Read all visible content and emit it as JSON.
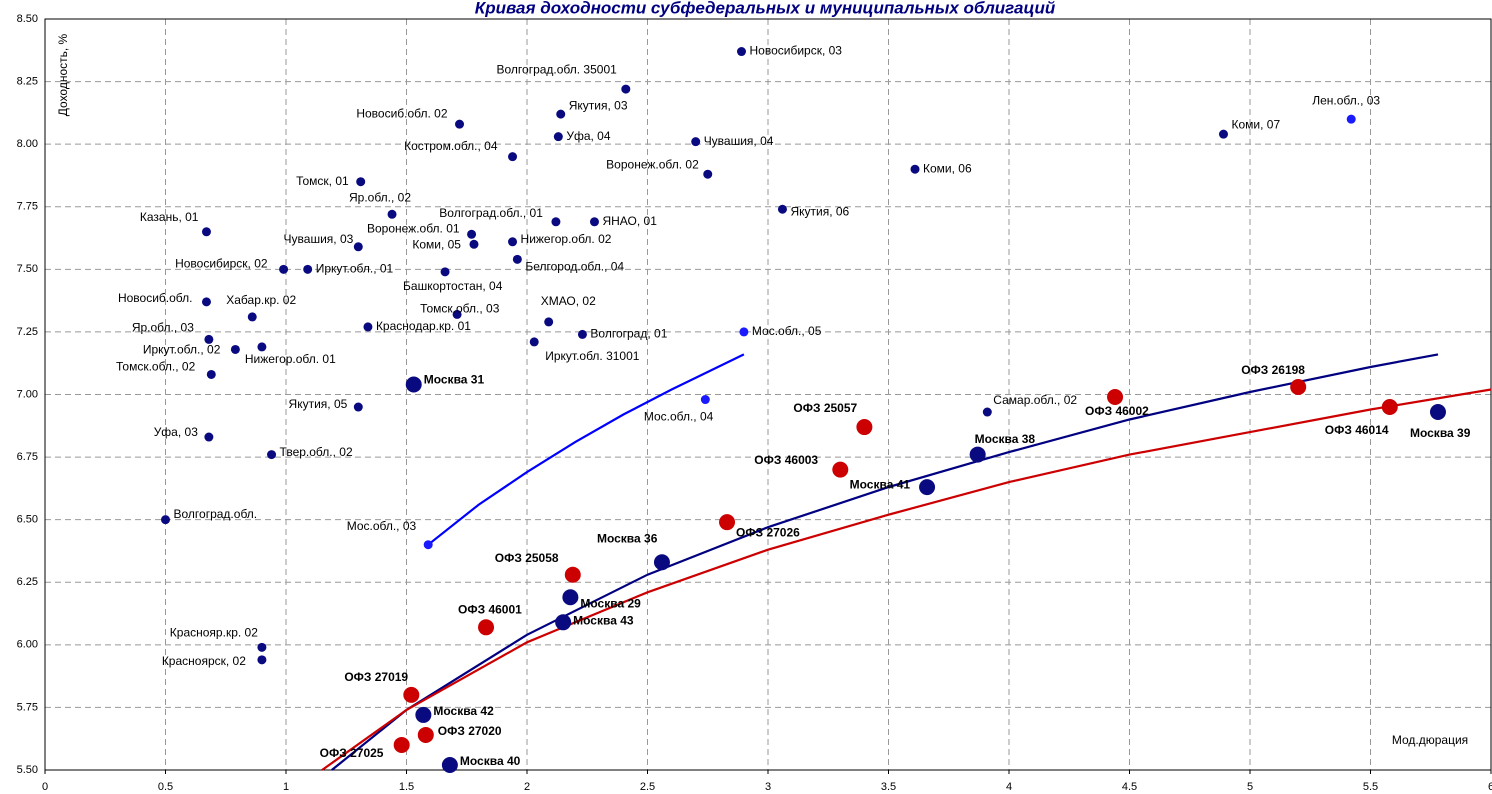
{
  "chart_data": {
    "type": "scatter",
    "title": "Кривая доходности субфедеральных и муниципальных облигаций",
    "x_label": "Мод.дюрация",
    "y_label": "Доходность, %",
    "xlim": [
      0,
      6
    ],
    "ylim": [
      5.5,
      8.5
    ],
    "xticks": [
      0,
      0.5,
      1,
      1.5,
      2,
      2.5,
      3,
      3.5,
      4,
      4.5,
      5,
      5.5,
      6
    ],
    "yticks": [
      {
        "value": 5.5,
        "label": "5.50"
      },
      5.75,
      {
        "value": 6,
        "label": "6.00"
      },
      6.25,
      {
        "value": 6.5,
        "label": "6.50"
      },
      6.75,
      {
        "value": 7,
        "label": "7.00"
      },
      7.25,
      {
        "value": 7.5,
        "label": "7.50"
      },
      7.75,
      {
        "value": 8,
        "label": "8.00"
      },
      8.25,
      {
        "value": 8.5,
        "label": "8.50"
      }
    ],
    "grid": true,
    "series": [
      {
        "color": "#0a0a80",
        "size": "small",
        "bold": false,
        "labels": [
          "Новосибирск, 03",
          "Волгоград.обл. 35001",
          "Якутия, 03",
          "Новосиб.обл. 02",
          "Уфа, 04",
          "Чувашия, 04",
          "Костром.обл., 04",
          "Воронеж.обл. 02",
          "Коми, 06",
          "Коми, 07",
          "Томск, 01",
          "Яр.обл., 02",
          "Волгоград.обл., 01",
          "ЯНАО, 01",
          "Якутия, 06",
          "Казань, 01",
          "Воронеж.обл. 01",
          "Коми, 05",
          "Нижегор.обл. 02",
          "Чувашия, 03",
          "Белгород.обл., 04",
          "Новосибирск, 02",
          "Иркут.обл., 01",
          "Башкортостан, 04",
          "Новосиб.обл.",
          "Хабар.кр. 02",
          "Томск.обл., 03",
          "ХМАО, 02",
          "Краснодар.кр. 01",
          "Волгоград, 01",
          "Яр.обл., 03",
          "Иркут.обл. 31001",
          "Иркут.обл., 02",
          "Нижегор.обл. 01",
          "Томск.обл., 02",
          "Якутия, 05",
          "Самар.обл., 02",
          "Уфа, 03",
          "Твер.обл., 02",
          "Волгоград.обл.",
          "Краснояр.кр. 02",
          "Красноярск, 02"
        ],
        "x": [
          2.89,
          2.41,
          2.14,
          1.72,
          2.13,
          2.7,
          1.94,
          2.75,
          3.61,
          4.89,
          1.31,
          1.44,
          2.12,
          2.28,
          3.06,
          0.67,
          1.77,
          1.78,
          1.94,
          1.3,
          1.96,
          0.99,
          1.09,
          1.66,
          0.67,
          0.86,
          1.71,
          2.09,
          1.34,
          2.23,
          0.68,
          2.03,
          0.79,
          0.9,
          0.69,
          1.3,
          3.91,
          0.68,
          0.94,
          0.5,
          0.9,
          0.9
        ],
        "values": [
          8.37,
          8.22,
          8.12,
          8.08,
          8.03,
          8.01,
          7.95,
          7.88,
          7.9,
          8.04,
          7.85,
          7.72,
          7.69,
          7.69,
          7.74,
          7.65,
          7.64,
          7.6,
          7.61,
          7.59,
          7.54,
          7.5,
          7.5,
          7.49,
          7.37,
          7.31,
          7.32,
          7.29,
          7.27,
          7.24,
          7.22,
          7.21,
          7.18,
          7.19,
          7.08,
          6.95,
          6.93,
          6.83,
          6.76,
          6.5,
          5.99,
          5.94
        ]
      },
      {
        "color": "#1a1aff",
        "size": "small",
        "bold": false,
        "labels": [
          "Лен.обл., 03",
          "Мос.обл., 05",
          "Мос.обл., 04",
          "Мос.обл., 03"
        ],
        "x": [
          5.42,
          2.9,
          2.74,
          1.59
        ],
        "values": [
          8.1,
          7.25,
          6.98,
          6.4
        ]
      },
      {
        "color": "#0a0a80",
        "size": "large",
        "bold": true,
        "labels": [
          "Москва 31",
          "Москва 36",
          "Москва 29",
          "Москва 43",
          "Москва 38",
          "Москва 41",
          "Москва 39",
          "Москва 42",
          "Москва 40"
        ],
        "x": [
          1.53,
          2.56,
          2.18,
          2.15,
          3.87,
          3.66,
          5.78,
          1.57,
          1.68
        ],
        "values": [
          7.04,
          6.33,
          6.19,
          6.09,
          6.76,
          6.63,
          6.93,
          5.72,
          5.52
        ]
      },
      {
        "color": "#cc0000",
        "size": "large",
        "bold": true,
        "labels": [
          "ОФЗ 26198",
          "ОФЗ 46002",
          "ОФЗ 46014",
          "ОФЗ 25057",
          "ОФЗ 46003",
          "ОФЗ 27026",
          "ОФЗ 25058",
          "ОФЗ 46001",
          "ОФЗ 27019",
          "ОФЗ 27020",
          "ОФЗ 27025"
        ],
        "x": [
          5.2,
          4.44,
          5.58,
          3.4,
          3.3,
          2.83,
          2.19,
          1.83,
          1.52,
          1.58,
          1.48
        ],
        "values": [
          7.03,
          6.99,
          6.95,
          6.87,
          6.7,
          6.49,
          6.28,
          6.07,
          5.8,
          5.64,
          5.6
        ]
      }
    ],
    "trendlines": [
      {
        "color": "#0000ff",
        "x": [
          1.59,
          1.8,
          2,
          2.2,
          2.4,
          2.6,
          2.9
        ],
        "values": [
          6.4,
          6.56,
          6.69,
          6.81,
          6.92,
          7.02,
          7.16
        ]
      },
      {
        "color": "#000080",
        "x": [
          1.19,
          1.5,
          2,
          2.5,
          3,
          3.5,
          4,
          4.5,
          5,
          5.5,
          5.78
        ],
        "values": [
          5.5,
          5.74,
          6.04,
          6.28,
          6.47,
          6.63,
          6.77,
          6.9,
          7.01,
          7.11,
          7.16
        ]
      },
      {
        "color": "#cc0000",
        "x": [
          1.15,
          1.5,
          2,
          2.5,
          3,
          3.5,
          4,
          4.5,
          5,
          5.5,
          6
        ],
        "values": [
          5.5,
          5.74,
          6.01,
          6.21,
          6.38,
          6.52,
          6.65,
          6.76,
          6.85,
          6.94,
          7.02
        ]
      }
    ]
  }
}
